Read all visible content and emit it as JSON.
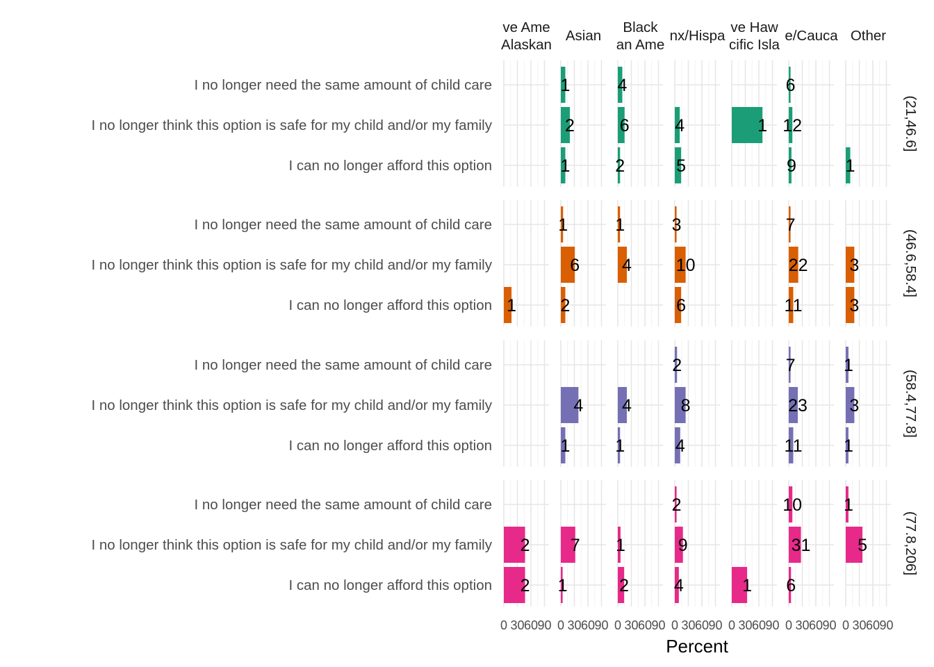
{
  "chart_data": {
    "type": "bar",
    "orientation": "horizontal",
    "xlabel": "Percent",
    "ylabel": "",
    "xlim": [
      0,
      100
    ],
    "x_ticks": [
      "0",
      "30",
      "60",
      "90"
    ],
    "grid": true,
    "categories": [
      "I no longer need the same amount of child care",
      "I no longer think this option is safe for my child and/or my family",
      "I can no longer afford this option"
    ],
    "columns": [
      "American Indian or Alaska Native",
      "Asian",
      "Black or African American",
      "Latinx/Hispanic",
      "Native Hawaiian or Pacific Islander",
      "White/Caucasian",
      "Other"
    ],
    "column_strip_lines": [
      [
        "ve Ame",
        "Alaskan"
      ],
      [
        "Asian"
      ],
      [
        "Black",
        "an Ame"
      ],
      [
        "nx/Hispa"
      ],
      [
        "ve Haw",
        "cific Isla"
      ],
      [
        "e/Cauca"
      ],
      [
        "Other"
      ]
    ],
    "rows": [
      {
        "label": "(21,46.6]",
        "color": "#1b9e77",
        "cells": [
          [
            null,
            null,
            null
          ],
          [
            {
              "pct": 10,
              "n": "1"
            },
            {
              "pct": 20,
              "n": "2"
            },
            {
              "pct": 10,
              "n": "1"
            }
          ],
          [
            {
              "pct": 10,
              "n": "4"
            },
            {
              "pct": 15,
              "n": "6"
            },
            {
              "pct": 5,
              "n": "2"
            }
          ],
          [
            null,
            {
              "pct": 11,
              "n": "4"
            },
            {
              "pct": 14,
              "n": "5"
            }
          ],
          [
            null,
            {
              "pct": 68,
              "n": "1"
            },
            null
          ],
          [
            {
              "pct": 4,
              "n": "6"
            },
            {
              "pct": 8,
              "n": "12"
            },
            {
              "pct": 6,
              "n": "9"
            }
          ],
          [
            null,
            null,
            {
              "pct": 10,
              "n": "1"
            }
          ]
        ]
      },
      {
        "label": "(46.6,58.4]",
        "color": "#d95f02",
        "cells": [
          [
            null,
            null,
            {
              "pct": 17,
              "n": "1"
            }
          ],
          [
            {
              "pct": 5,
              "n": "1"
            },
            {
              "pct": 31,
              "n": "6"
            },
            {
              "pct": 10,
              "n": "2"
            }
          ],
          [
            {
              "pct": 5,
              "n": "1"
            },
            {
              "pct": 20,
              "n": "4"
            },
            null
          ],
          [
            {
              "pct": 4,
              "n": "3"
            },
            {
              "pct": 24,
              "n": "10"
            },
            {
              "pct": 14,
              "n": "6"
            }
          ],
          [
            null,
            null,
            null
          ],
          [
            {
              "pct": 4,
              "n": "7"
            },
            {
              "pct": 21,
              "n": "22"
            },
            {
              "pct": 10,
              "n": "11"
            }
          ],
          [
            null,
            {
              "pct": 19,
              "n": "3"
            },
            {
              "pct": 19,
              "n": "3"
            }
          ]
        ]
      },
      {
        "label": "(58.4,77.8]",
        "color": "#7570b3",
        "cells": [
          [
            null,
            null,
            null
          ],
          [
            null,
            {
              "pct": 39,
              "n": "4"
            },
            {
              "pct": 10,
              "n": "1"
            }
          ],
          [
            null,
            {
              "pct": 20,
              "n": "4"
            },
            {
              "pct": 5,
              "n": "1"
            }
          ],
          [
            {
              "pct": 5,
              "n": "2"
            },
            {
              "pct": 24,
              "n": "8"
            },
            {
              "pct": 12,
              "n": "4"
            }
          ],
          [
            null,
            null,
            null
          ],
          [
            {
              "pct": 4,
              "n": "7"
            },
            {
              "pct": 20,
              "n": "23"
            },
            {
              "pct": 10,
              "n": "11"
            }
          ],
          [
            {
              "pct": 6,
              "n": "1"
            },
            {
              "pct": 19,
              "n": "3"
            },
            {
              "pct": 6,
              "n": "1"
            }
          ]
        ]
      },
      {
        "label": "(77.8,206]",
        "color": "#e7298a",
        "cells": [
          [
            null,
            {
              "pct": 47,
              "n": "2"
            },
            {
              "pct": 47,
              "n": "2"
            }
          ],
          [
            null,
            {
              "pct": 32,
              "n": "7"
            },
            {
              "pct": 4,
              "n": "1"
            }
          ],
          [
            null,
            {
              "pct": 6,
              "n": "1"
            },
            {
              "pct": 14,
              "n": "2"
            }
          ],
          [
            {
              "pct": 4,
              "n": "2"
            },
            {
              "pct": 18,
              "n": "9"
            },
            {
              "pct": 9,
              "n": "4"
            }
          ],
          [
            null,
            null,
            {
              "pct": 34,
              "n": "1"
            }
          ],
          [
            {
              "pct": 8,
              "n": "10"
            },
            {
              "pct": 27,
              "n": "31"
            },
            {
              "pct": 5,
              "n": "6"
            }
          ],
          [
            {
              "pct": 6,
              "n": "1"
            },
            {
              "pct": 37,
              "n": "5"
            },
            null
          ]
        ]
      }
    ]
  }
}
